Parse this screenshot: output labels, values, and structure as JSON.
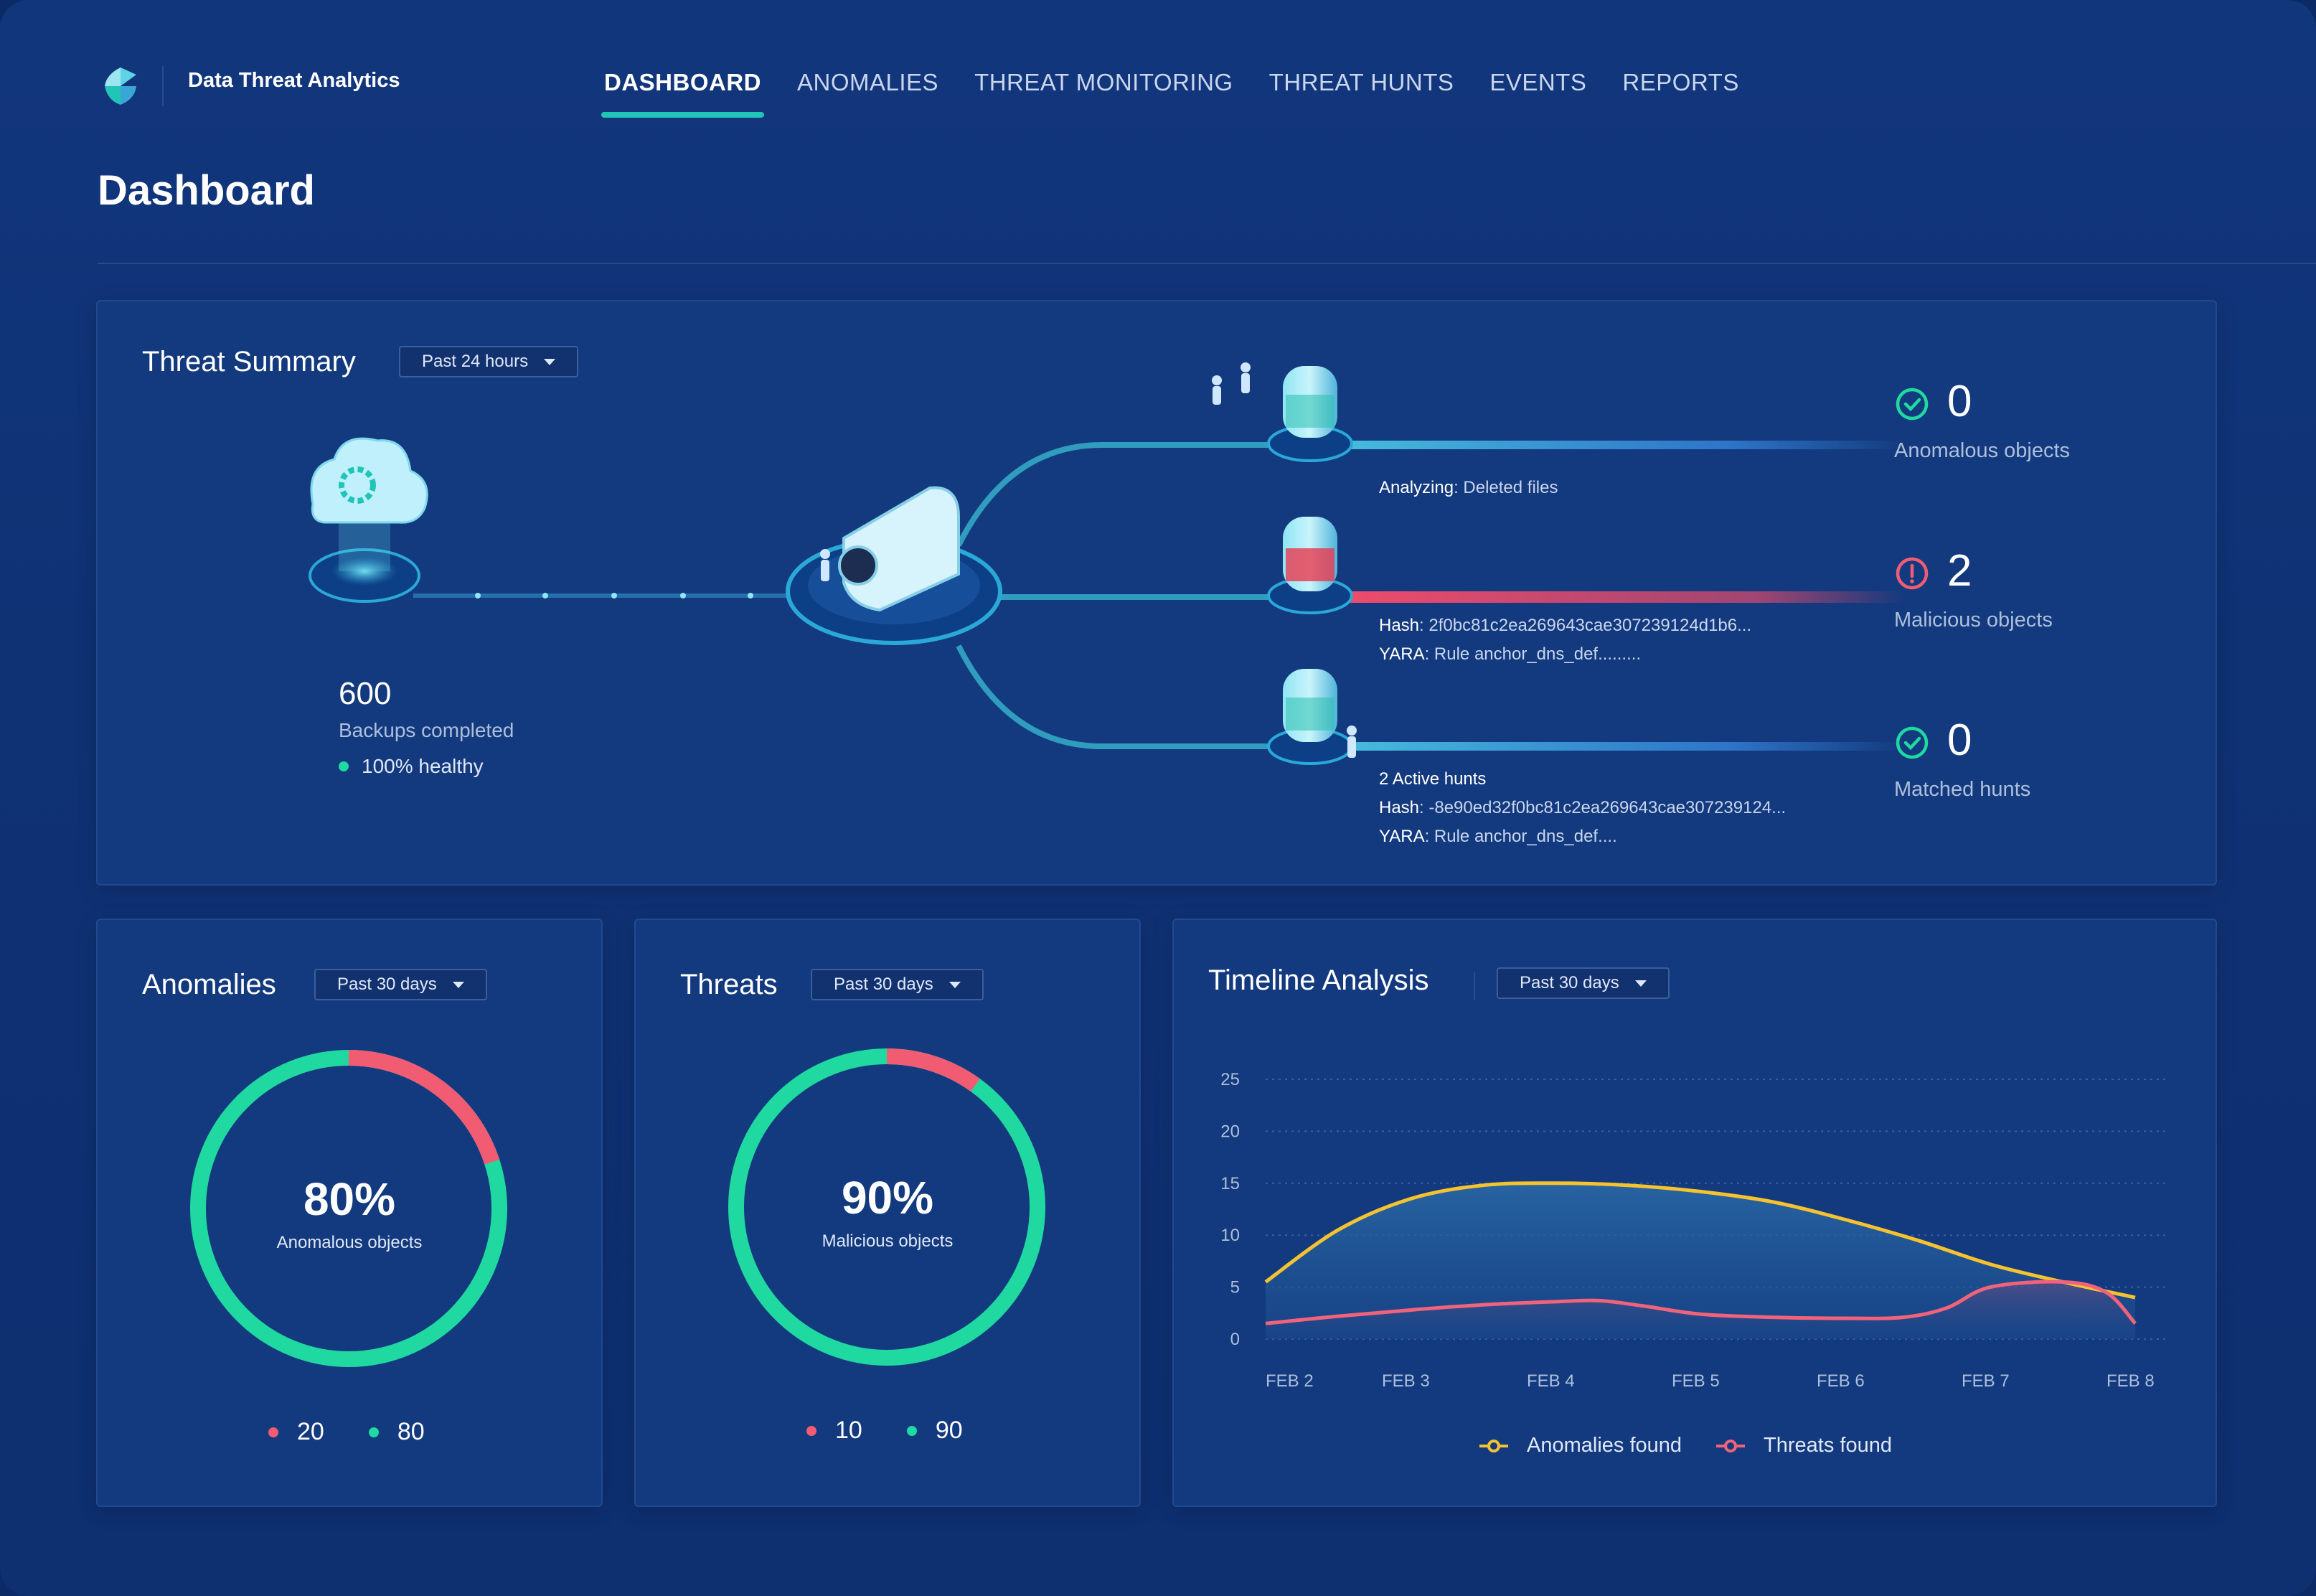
{
  "app": {
    "brand": "Data Threat Analytics"
  },
  "nav": {
    "items": [
      {
        "label": "DASHBOARD",
        "active": true
      },
      {
        "label": "ANOMALIES",
        "active": false
      },
      {
        "label": "THREAT MONITORING",
        "active": false
      },
      {
        "label": "THREAT HUNTS",
        "active": false
      },
      {
        "label": "EVENTS",
        "active": false
      },
      {
        "label": "REPORTS",
        "active": false
      }
    ]
  },
  "header": {
    "icons": [
      "search-icon",
      "bell-icon",
      "bot-icon",
      "help-icon",
      "apps-grid-icon",
      "user-icon"
    ]
  },
  "page": {
    "title": "Dashboard"
  },
  "colors": {
    "accent": "#21c5b8",
    "healthy": "#1fd9a0",
    "malicious": "#f25c73",
    "anomalies_line": "#f5c230",
    "threats_line": "#f0637b"
  },
  "summary": {
    "title": "Threat Summary",
    "range": "Past 24 hours",
    "backups": {
      "count": "600",
      "label": "Backups completed",
      "health": "100% healthy"
    },
    "lanes": {
      "analyzing_key": "Analyzing",
      "analyzing_value": ": Deleted files",
      "hash_key": "Hash",
      "hash_value": ": 2f0bc81c2ea269643cae307239124d1b6...",
      "yara_key": "YARA",
      "yara_value": ": Rule anchor_dns_def.........",
      "hunts": "2 Active hunts",
      "hunt_hash_key": "Hash",
      "hunt_hash_value": ": -8e90ed32f0bc81c2ea269643cae307239124...",
      "hunt_yara_key": "YARA",
      "hunt_yara_value": ": Rule anchor_dns_def...."
    },
    "stats": [
      {
        "value": "0",
        "label": "Anomalous objects",
        "status": "ok"
      },
      {
        "value": "2",
        "label": "Malicious objects",
        "status": "alert"
      },
      {
        "value": "0",
        "label": "Matched hunts",
        "status": "ok"
      }
    ]
  },
  "anomalies": {
    "title": "Anomalies",
    "range": "Past 30 days",
    "percent": "80%",
    "caption": "Anomalous objects",
    "red_value": "20",
    "green_value": "80",
    "red_fraction": 0.2
  },
  "threats": {
    "title": "Threats",
    "range": "Past 30 days",
    "percent": "90%",
    "caption": "Malicious objects",
    "red_value": "10",
    "green_value": "90",
    "red_fraction": 0.1
  },
  "timeline": {
    "title": "Timeline Analysis",
    "range": "Past 30 days"
  },
  "chart_data": {
    "type": "area",
    "title": "Timeline Analysis",
    "categories": [
      "FEB 2",
      "FEB 3",
      "FEB 4",
      "FEB 5",
      "FEB 6",
      "FEB 7",
      "FEB 8"
    ],
    "x": [
      0,
      1,
      2,
      3,
      4,
      5,
      6
    ],
    "ylim": [
      0,
      25
    ],
    "yticks": [
      "0",
      "5",
      "10",
      "15",
      "20",
      "25"
    ],
    "grid": true,
    "legend": "bottom",
    "series": [
      {
        "name": "Anomalies found",
        "x": [
          0,
          0.5,
          1,
          1.5,
          2,
          2.5,
          3,
          3.5,
          4,
          4.5,
          5,
          5.5,
          6
        ],
        "values": [
          5.5,
          10.5,
          13.5,
          14.8,
          15,
          14.8,
          14.2,
          13.2,
          11.5,
          9.5,
          7.2,
          5.5,
          4
        ]
      },
      {
        "name": "Threats found",
        "x": [
          0,
          0.5,
          1,
          1.5,
          2,
          2.3,
          2.6,
          3,
          3.5,
          4,
          4.4,
          4.7,
          5,
          5.5,
          5.8,
          6
        ],
        "values": [
          1.5,
          2.2,
          2.8,
          3.3,
          3.6,
          3.7,
          3.2,
          2.4,
          2.1,
          2,
          2.1,
          3,
          5,
          5.5,
          4.5,
          1.5
        ]
      }
    ]
  }
}
